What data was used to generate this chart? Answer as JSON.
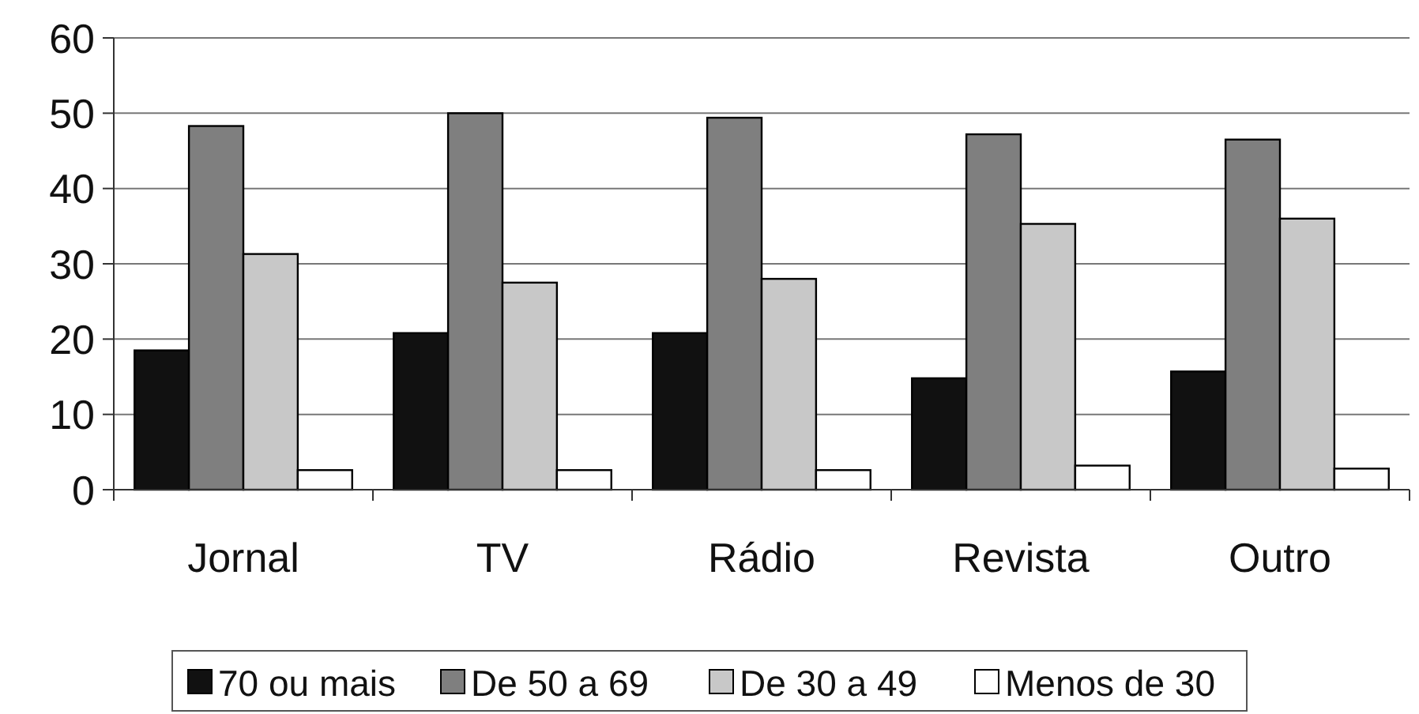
{
  "chart_data": {
    "type": "bar",
    "categories": [
      "Jornal",
      "TV",
      "Rádio",
      "Revista",
      "Outro"
    ],
    "series": [
      {
        "name": "70 ou mais",
        "color": "#111111",
        "values": [
          18.5,
          20.8,
          20.8,
          14.8,
          15.7
        ]
      },
      {
        "name": "De 50 a 69",
        "color": "#7f7f7f",
        "values": [
          48.3,
          50,
          49.4,
          47.2,
          46.5
        ]
      },
      {
        "name": "De 30 a 49",
        "color": "#c8c8c8",
        "values": [
          31.3,
          27.5,
          28,
          35.3,
          36
        ]
      },
      {
        "name": "Menos de 30",
        "color": "#ffffff",
        "values": [
          2.6,
          2.6,
          2.6,
          3.2,
          2.8
        ]
      }
    ],
    "ylim": [
      0,
      60
    ],
    "yticks": [
      0,
      10,
      20,
      30,
      40,
      50,
      60
    ],
    "grid": "y",
    "legend": "bottom"
  }
}
